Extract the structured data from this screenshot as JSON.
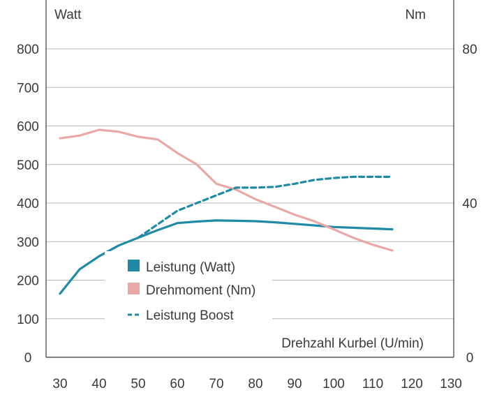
{
  "chart_data": {
    "type": "line",
    "title": "",
    "xlabel": "Drehzahl Kurbel (U/min)",
    "ylabel_left": "Watt",
    "ylabel_right": "Nm",
    "x_ticks": [
      "30",
      "40",
      "50",
      "60",
      "70",
      "80",
      "90",
      "100",
      "110",
      "120",
      "130"
    ],
    "y_ticks_left": [
      "0",
      "100",
      "200",
      "300",
      "400",
      "500",
      "600",
      "700",
      "800"
    ],
    "y_ticks_right": [
      "0",
      "40",
      "80"
    ],
    "xlim": [
      30,
      130
    ],
    "ylim_left": [
      0,
      800
    ],
    "ylim_right": [
      0,
      80
    ],
    "grid": true,
    "legend_position": "center",
    "series": [
      {
        "name": "Leistung (Watt)",
        "axis": "left",
        "color": "#1f8aa6",
        "style": "solid",
        "x": [
          30,
          35,
          40,
          45,
          50,
          55,
          60,
          65,
          70,
          75,
          80,
          85,
          90,
          95,
          100,
          105,
          110,
          115
        ],
        "y": [
          165,
          228,
          262,
          290,
          310,
          330,
          348,
          352,
          355,
          354,
          353,
          350,
          346,
          342,
          338,
          336,
          334,
          332
        ]
      },
      {
        "name": "Drehmoment (Nm)",
        "axis": "right",
        "color": "#e8a9a6",
        "style": "solid",
        "x": [
          30,
          35,
          40,
          45,
          50,
          55,
          60,
          65,
          70,
          75,
          80,
          85,
          90,
          95,
          100,
          105,
          110,
          115
        ],
        "y": [
          56.8,
          57.5,
          59,
          58.5,
          57.2,
          56.5,
          53,
          50,
          45,
          43.5,
          41,
          39,
          37,
          35.3,
          33.2,
          31,
          29.2,
          27.7
        ]
      },
      {
        "name": "Leistung Boost",
        "axis": "left",
        "color": "#1f8aa6",
        "style": "dashed",
        "x": [
          50,
          60,
          70,
          75,
          80,
          85,
          90,
          95,
          100,
          105,
          110,
          115
        ],
        "y": [
          310,
          380,
          420,
          440,
          440,
          442,
          450,
          460,
          465,
          468,
          468,
          468
        ]
      }
    ]
  }
}
